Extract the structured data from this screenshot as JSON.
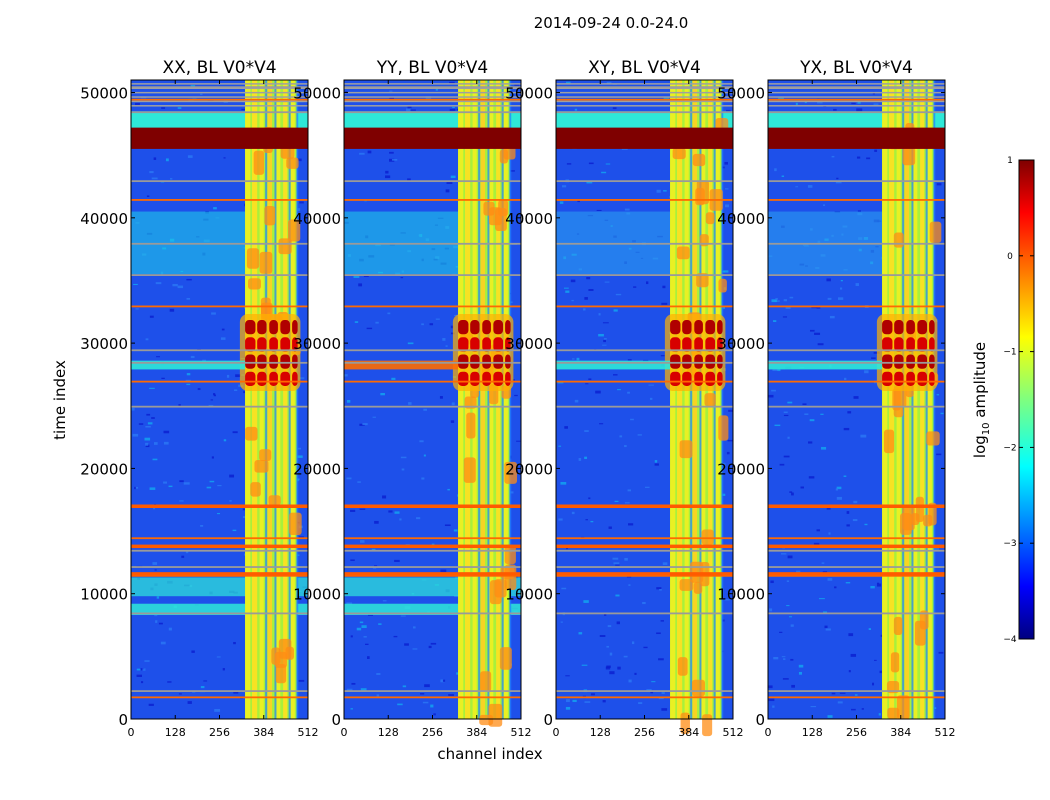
{
  "chart_data": {
    "type": "heatmap",
    "title": "2014-09-24 0.0-24.0",
    "xlabel": "channel index",
    "ylabel": "time index",
    "xlim": [
      0,
      512
    ],
    "ylim": [
      0,
      51000
    ],
    "x_ticks": [
      "0",
      "128",
      "256",
      "384",
      "512"
    ],
    "y_ticks": [
      "0",
      "10000",
      "20000",
      "30000",
      "40000",
      "50000"
    ],
    "panels": [
      {
        "name": "XX",
        "title": "XX, BL V0*V4"
      },
      {
        "name": "YY",
        "title": "YY, BL V0*V4"
      },
      {
        "name": "XY",
        "title": "XY, BL V0*V4"
      },
      {
        "name": "YX",
        "title": "YX, BL V0*V4"
      }
    ],
    "colorbar": {
      "label_main": "log",
      "label_sub": "10",
      "label_tail": " amplitude",
      "range": [
        -4,
        1
      ],
      "ticks": [
        "1",
        "0",
        "−1",
        "−2",
        "−3",
        "−4"
      ],
      "colormap": "jet"
    },
    "features": {
      "saturated_time_band": [
        45500,
        47200
      ],
      "rfi_channel_band": [
        330,
        480
      ],
      "strong_burst_time": [
        26500,
        32000
      ],
      "flagged_rows": [
        1800,
        2300,
        8500,
        11500,
        12200,
        13500,
        14500,
        17000,
        25000,
        27000,
        28500,
        29500,
        33000,
        35500,
        38000,
        41500,
        43000,
        48500,
        49500,
        50500
      ]
    }
  }
}
